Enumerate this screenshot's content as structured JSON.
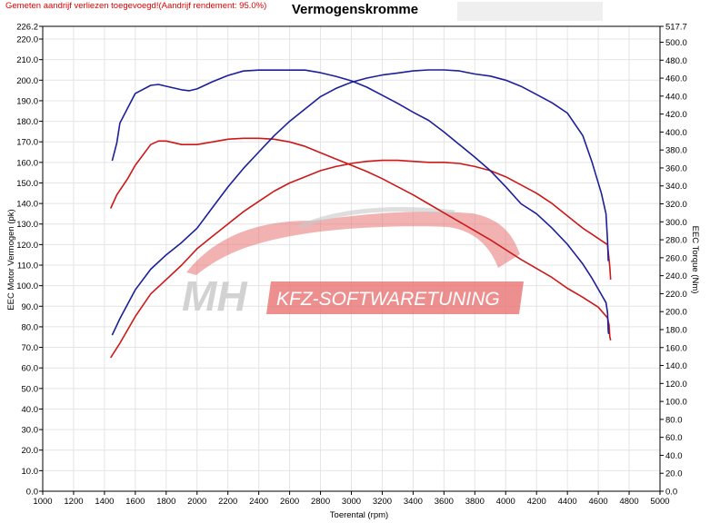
{
  "note": "Gemeten aandrijf verliezen toegevoegd!(Aandrijf rendement: 95.0%)",
  "colors": {
    "before": "#cc1818",
    "after": "#1c1f9a",
    "grid": "#e4e4e4",
    "watermark_red": "#e87373"
  },
  "watermark": {
    "mh": "MH",
    "kfz": "KFZ-SOFTWARETUNING"
  },
  "chart_data": {
    "type": "line",
    "title": "Vermogenskromme",
    "xlabel": "Toerental (rpm)",
    "ylabel_left": "EEC Motor Vermogen (pk)",
    "ylabel_right": "EEC Torque (Nm)",
    "xlim": [
      1000,
      5000
    ],
    "ylim_left": [
      0.0,
      226.2
    ],
    "ylim_right": [
      0.0,
      517.7
    ],
    "grid": true,
    "legend": "none",
    "x_ticks": [
      "1000",
      "1200",
      "1400",
      "1600",
      "1800",
      "2000",
      "2200",
      "2400",
      "2600",
      "2800",
      "3000",
      "3200",
      "3400",
      "3600",
      "3800",
      "4000",
      "4200",
      "4400",
      "4600",
      "4800",
      "5000"
    ],
    "y_left_ticks": [
      "0.0",
      "10.0",
      "20.0",
      "30.0",
      "40.0",
      "50.0",
      "60.0",
      "70.0",
      "80.0",
      "90.0",
      "100.0",
      "110.0",
      "120.0",
      "130.0",
      "140.0",
      "150.0",
      "160.0",
      "170.0",
      "180.0",
      "190.0",
      "200.0",
      "210.0",
      "220.0",
      "226.2"
    ],
    "y_right_ticks": [
      "0.0",
      "20.0",
      "40.0",
      "60.0",
      "80.0",
      "100.0",
      "120.0",
      "140.0",
      "160.0",
      "180.0",
      "200.0",
      "220.0",
      "240.0",
      "260.0",
      "280.0",
      "300.0",
      "320.0",
      "340.0",
      "360.0",
      "380.0",
      "400.0",
      "420.0",
      "440.0",
      "460.0",
      "480.0",
      "500.0",
      "517.7"
    ],
    "series": [
      {
        "axis": "left",
        "role": "power-stock",
        "color": "#cc1818",
        "points": [
          [
            1440,
            65
          ],
          [
            1500,
            72
          ],
          [
            1600,
            85
          ],
          [
            1700,
            96
          ],
          [
            1800,
            103
          ],
          [
            1900,
            110
          ],
          [
            2000,
            118
          ],
          [
            2100,
            124
          ],
          [
            2200,
            130
          ],
          [
            2300,
            136
          ],
          [
            2400,
            141
          ],
          [
            2500,
            146
          ],
          [
            2600,
            150
          ],
          [
            2700,
            153
          ],
          [
            2800,
            156
          ],
          [
            2900,
            158
          ],
          [
            3000,
            159.5
          ],
          [
            3100,
            160.5
          ],
          [
            3200,
            161
          ],
          [
            3300,
            161
          ],
          [
            3400,
            160.5
          ],
          [
            3500,
            160
          ],
          [
            3600,
            160
          ],
          [
            3700,
            159.5
          ],
          [
            3800,
            158
          ],
          [
            3900,
            156
          ],
          [
            4000,
            153
          ],
          [
            4100,
            149
          ],
          [
            4200,
            145
          ],
          [
            4300,
            140
          ],
          [
            4400,
            134
          ],
          [
            4500,
            128
          ],
          [
            4560,
            125
          ],
          [
            4620,
            122
          ],
          [
            4660,
            120
          ],
          [
            4675,
            109
          ],
          [
            4680,
            103
          ]
        ]
      },
      {
        "axis": "right",
        "role": "torque-stock",
        "color": "#cc1818",
        "points": [
          [
            1440,
            315
          ],
          [
            1480,
            330
          ],
          [
            1550,
            348
          ],
          [
            1600,
            363
          ],
          [
            1700,
            386
          ],
          [
            1750,
            390
          ],
          [
            1800,
            390
          ],
          [
            1900,
            386
          ],
          [
            2000,
            386
          ],
          [
            2100,
            389
          ],
          [
            2200,
            392
          ],
          [
            2300,
            393
          ],
          [
            2400,
            393
          ],
          [
            2500,
            392
          ],
          [
            2600,
            389
          ],
          [
            2700,
            384
          ],
          [
            2800,
            377
          ],
          [
            2900,
            370
          ],
          [
            3000,
            363
          ],
          [
            3100,
            356
          ],
          [
            3200,
            348
          ],
          [
            3300,
            339
          ],
          [
            3400,
            330
          ],
          [
            3500,
            320
          ],
          [
            3600,
            310
          ],
          [
            3700,
            300
          ],
          [
            3800,
            290
          ],
          [
            3900,
            280
          ],
          [
            4000,
            269
          ],
          [
            4100,
            258
          ],
          [
            4200,
            248
          ],
          [
            4300,
            238
          ],
          [
            4400,
            226
          ],
          [
            4500,
            216
          ],
          [
            4600,
            205
          ],
          [
            4660,
            193
          ],
          [
            4670,
            185
          ],
          [
            4675,
            172
          ],
          [
            4680,
            168
          ]
        ]
      },
      {
        "axis": "left",
        "role": "power-tuned",
        "color": "#1c1f9a",
        "points": [
          [
            1450,
            76
          ],
          [
            1500,
            84
          ],
          [
            1600,
            98
          ],
          [
            1700,
            108
          ],
          [
            1800,
            115
          ],
          [
            1900,
            121
          ],
          [
            2000,
            128
          ],
          [
            2100,
            138
          ],
          [
            2200,
            148
          ],
          [
            2300,
            157
          ],
          [
            2400,
            165
          ],
          [
            2500,
            173
          ],
          [
            2600,
            180
          ],
          [
            2700,
            186
          ],
          [
            2800,
            192
          ],
          [
            2900,
            196
          ],
          [
            3000,
            199
          ],
          [
            3100,
            201
          ],
          [
            3200,
            202.5
          ],
          [
            3300,
            203.5
          ],
          [
            3400,
            204.5
          ],
          [
            3500,
            205
          ],
          [
            3600,
            205
          ],
          [
            3700,
            204.5
          ],
          [
            3800,
            203
          ],
          [
            3900,
            202
          ],
          [
            4000,
            200
          ],
          [
            4100,
            197
          ],
          [
            4200,
            193
          ],
          [
            4300,
            189
          ],
          [
            4400,
            184
          ],
          [
            4500,
            173
          ],
          [
            4560,
            160
          ],
          [
            4620,
            145
          ],
          [
            4650,
            135
          ],
          [
            4660,
            122
          ],
          [
            4665,
            112
          ]
        ]
      },
      {
        "axis": "right",
        "role": "torque-tuned",
        "color": "#1c1f9a",
        "points": [
          [
            1450,
            368
          ],
          [
            1480,
            388
          ],
          [
            1500,
            410
          ],
          [
            1600,
            443
          ],
          [
            1700,
            452
          ],
          [
            1750,
            453
          ],
          [
            1800,
            451
          ],
          [
            1900,
            447
          ],
          [
            1950,
            446
          ],
          [
            2000,
            448
          ],
          [
            2100,
            456
          ],
          [
            2200,
            463
          ],
          [
            2300,
            468
          ],
          [
            2400,
            469
          ],
          [
            2500,
            469
          ],
          [
            2600,
            469
          ],
          [
            2700,
            469
          ],
          [
            2800,
            466
          ],
          [
            2900,
            462
          ],
          [
            3000,
            457
          ],
          [
            3100,
            450
          ],
          [
            3200,
            441
          ],
          [
            3300,
            432
          ],
          [
            3400,
            422
          ],
          [
            3500,
            413
          ],
          [
            3600,
            400
          ],
          [
            3700,
            386
          ],
          [
            3800,
            372
          ],
          [
            3900,
            357
          ],
          [
            4000,
            339
          ],
          [
            4100,
            320
          ],
          [
            4200,
            309
          ],
          [
            4300,
            293
          ],
          [
            4400,
            275
          ],
          [
            4500,
            253
          ],
          [
            4560,
            237
          ],
          [
            4620,
            219
          ],
          [
            4650,
            210
          ],
          [
            4660,
            199
          ],
          [
            4665,
            178
          ],
          [
            4668,
            175
          ]
        ]
      }
    ]
  }
}
